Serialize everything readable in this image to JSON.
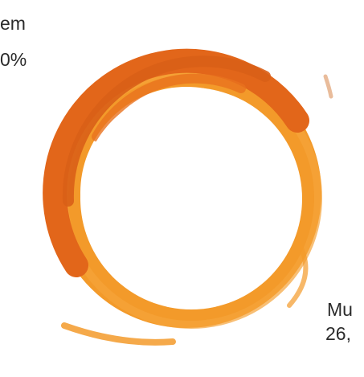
{
  "labels": [
    {
      "lines": [
        "em",
        "0%"
      ]
    },
    {
      "lines": [
        "Mu",
        "26,"
      ]
    }
  ]
}
